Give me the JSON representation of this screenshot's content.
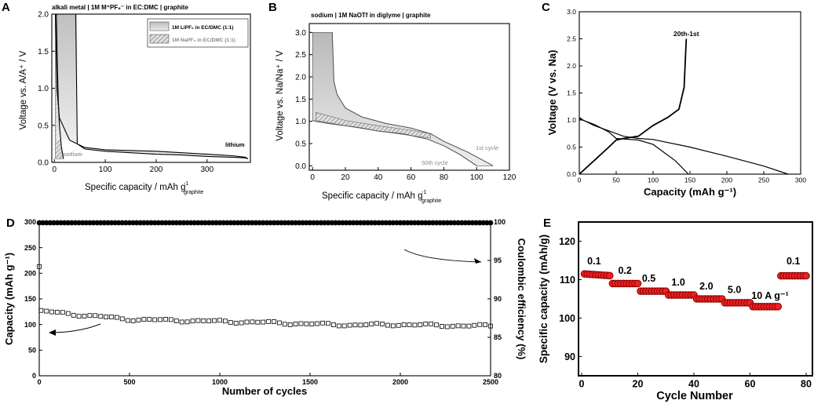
{
  "chart_data": [
    {
      "panel": "A",
      "type": "line",
      "title": "alkali metal | 1M M⁺PF₆⁻ in EC:DMC | graphite",
      "xlabel": "Specific capacity / mAh g⁻¹graphite",
      "ylabel": "Voltage vs. A/A⁺ / V",
      "xlim": [
        -5,
        385
      ],
      "ylim": [
        0,
        2.0
      ],
      "xticks": [
        0,
        100,
        200,
        300
      ],
      "yticks": [
        0.0,
        0.5,
        1.0,
        1.5,
        2.0
      ],
      "legend": [
        "1M LiPF₆ in EC/DMC (1:1)",
        "1M NaPF₆ in EC/DMC (1:1)"
      ],
      "legend_position": "top-right",
      "annotations": [
        "lithium",
        "sodium"
      ],
      "series": [
        {
          "name": "lithium-1st-discharge",
          "x": [
            2,
            5,
            10,
            30,
            60,
            100,
            150,
            200,
            250,
            300,
            350,
            375,
            380
          ],
          "y": [
            2.0,
            1.0,
            0.6,
            0.3,
            0.2,
            0.17,
            0.16,
            0.15,
            0.13,
            0.11,
            0.09,
            0.07,
            0.05
          ]
        },
        {
          "name": "lithium-later-discharge",
          "x": [
            45,
            60,
            100,
            150,
            200,
            250,
            300,
            350,
            375,
            380
          ],
          "y": [
            0.25,
            0.18,
            0.15,
            0.13,
            0.11,
            0.1,
            0.08,
            0.07,
            0.06,
            0.05
          ]
        },
        {
          "name": "sodium-1st",
          "x": [
            4,
            6,
            8,
            10,
            14,
            18
          ],
          "y": [
            2.0,
            1.3,
            0.8,
            0.5,
            0.2,
            0.05
          ]
        }
      ]
    },
    {
      "panel": "B",
      "type": "line",
      "title": "sodium | 1M NaOTf in diglyme | graphite",
      "xlabel": "Specific capacity / mAh g⁻¹graphite",
      "ylabel": "Voltage vs. Na/Na⁺ / V",
      "xlim": [
        -2,
        120
      ],
      "ylim": [
        -0.1,
        3.2
      ],
      "xticks": [
        0,
        20,
        40,
        60,
        80,
        100,
        120
      ],
      "yticks": [
        0.0,
        0.5,
        1.0,
        1.5,
        2.0,
        2.5,
        3.0
      ],
      "annotations": [
        "1st cycle",
        "50th cycle"
      ],
      "series": [
        {
          "name": "1st cycle",
          "x": [
            12,
            13,
            15,
            20,
            30,
            45,
            60,
            72,
            80,
            95,
            110
          ],
          "y": [
            3.0,
            1.9,
            1.6,
            1.3,
            1.1,
            0.95,
            0.85,
            0.72,
            0.55,
            0.3,
            0.0
          ]
        },
        {
          "name": "50th cycle",
          "x": [
            0,
            2,
            10,
            20,
            30,
            40,
            55,
            70,
            80,
            90,
            100
          ],
          "y": [
            1.02,
            1.0,
            0.95,
            0.9,
            0.85,
            0.78,
            0.72,
            0.6,
            0.45,
            0.25,
            0.0
          ]
        }
      ]
    },
    {
      "panel": "C",
      "type": "line",
      "xlabel": "Capacity (mAh g⁻¹)",
      "ylabel": "Voltage (V vs. Na)",
      "xlim": [
        0,
        300
      ],
      "ylim": [
        0,
        3.0
      ],
      "xticks": [
        0,
        50,
        100,
        150,
        200,
        250,
        300
      ],
      "yticks": [
        0.0,
        0.5,
        1.0,
        1.5,
        2.0,
        2.5,
        3.0
      ],
      "annotations": [
        "20th-1st"
      ],
      "series": [
        {
          "name": "1st discharge",
          "x": [
            0,
            5,
            20,
            40,
            60,
            80,
            100,
            150,
            200,
            250,
            283
          ],
          "y": [
            1.05,
            1.0,
            0.9,
            0.8,
            0.7,
            0.66,
            0.64,
            0.5,
            0.33,
            0.15,
            0.0
          ]
        },
        {
          "name": "later discharge",
          "x": [
            0,
            20,
            40,
            50,
            60,
            80,
            100,
            130,
            148
          ],
          "y": [
            1.02,
            0.92,
            0.78,
            0.66,
            0.65,
            0.63,
            0.55,
            0.25,
            0.0
          ]
        },
        {
          "name": "charge",
          "x": [
            0,
            20,
            40,
            50,
            60,
            80,
            100,
            120,
            135,
            142,
            145
          ],
          "y": [
            0.0,
            0.25,
            0.5,
            0.63,
            0.66,
            0.7,
            0.9,
            1.05,
            1.2,
            1.6,
            2.5
          ]
        }
      ]
    },
    {
      "panel": "D",
      "type": "scatter",
      "xlabel": "Number of cycles",
      "ylabel": "Capacity (mAh g⁻¹)",
      "y2label": "Coulombic efficiency (%)",
      "xlim": [
        0,
        2500
      ],
      "ylim": [
        0,
        300
      ],
      "y2lim": [
        80,
        100
      ],
      "xticks": [
        0,
        500,
        1000,
        1500,
        2000,
        2500
      ],
      "yticks": [
        0,
        50,
        100,
        150,
        200,
        250,
        300
      ],
      "y2ticks": [
        80,
        85,
        90,
        95,
        100
      ],
      "series": [
        {
          "name": "Capacity",
          "axis": "left",
          "x": [
            0,
            10,
            250,
            500,
            750,
            1000,
            1250,
            1500,
            1750,
            2000,
            2250,
            2500
          ],
          "y": [
            213,
            126,
            118,
            110,
            108,
            106,
            104,
            101,
            99,
            100,
            98,
            97
          ]
        },
        {
          "name": "Coulombic efficiency",
          "axis": "right",
          "x": [
            0,
            2500
          ],
          "y": [
            99.9,
            99.9
          ]
        }
      ]
    },
    {
      "panel": "E",
      "type": "scatter",
      "xlabel": "Cycle Number",
      "ylabel": "Specific capacity (mAh/g)",
      "xlim": [
        0,
        80
      ],
      "ylim": [
        85,
        125
      ],
      "xticks": [
        0,
        20,
        40,
        60,
        80
      ],
      "yticks": [
        90,
        100,
        110,
        120
      ],
      "rate_labels": [
        "0.1",
        "0.2",
        "0.5",
        "1.0",
        "2.0",
        "5.0",
        "10 A g⁻¹",
        "0.1"
      ],
      "rate_segments": [
        {
          "rate": "0.1",
          "cycles": [
            1,
            10
          ],
          "capacity": 111.5
        },
        {
          "rate": "0.2",
          "cycles": [
            11,
            20
          ],
          "capacity": 109
        },
        {
          "rate": "0.5",
          "cycles": [
            21,
            30
          ],
          "capacity": 107
        },
        {
          "rate": "1.0",
          "cycles": [
            31,
            40
          ],
          "capacity": 106
        },
        {
          "rate": "2.0",
          "cycles": [
            41,
            50
          ],
          "capacity": 105
        },
        {
          "rate": "5.0",
          "cycles": [
            51,
            60
          ],
          "capacity": 104
        },
        {
          "rate": "10",
          "cycles": [
            61,
            70
          ],
          "capacity": 103
        },
        {
          "rate": "0.1",
          "cycles": [
            71,
            80
          ],
          "capacity": 111
        }
      ]
    }
  ],
  "panels": {
    "A": {
      "letter": "A",
      "title": "alkali metal | 1M M⁺PF₆⁻ in EC:DMC | graphite",
      "xlabel": "Specific capacity / mAh g",
      "xsup": "-1",
      "xsub": "graphite",
      "ylabel": "Voltage vs. A/A⁺ / V",
      "legend1": "1M LiPF₆ in EC/DMC (1:1)",
      "legend2": "1M NaPF₆ in EC/DMC (1:1)",
      "ann_lithium": "lithium",
      "ann_sodium": "sodium"
    },
    "B": {
      "letter": "B",
      "title": "sodium | 1M NaOTf in diglyme | graphite",
      "xlabel": "Specific capacity / mAh g",
      "xsup": "-1",
      "xsub": "graphite",
      "ylabel": "Voltage vs. Na/Na⁺ / V",
      "ann_1st": "1st cycle",
      "ann_50th": "50th cycle"
    },
    "C": {
      "letter": "C",
      "xlabel": "Capacity (mAh g⁻¹)",
      "ylabel": "Voltage (V vs. Na)",
      "ann": "20th-1st"
    },
    "D": {
      "letter": "D",
      "xlabel": "Number of cycles",
      "ylabel": "Capacity (mAh g⁻¹)",
      "y2label": "Coulombic efficiency (%)"
    },
    "E": {
      "letter": "E",
      "xlabel": "Cycle Number",
      "ylabel": "Specific capacity (mAh/g)"
    }
  },
  "colors": {
    "line": "#000000",
    "gray_fill": "#d8d8d8",
    "light_fill": "#e6e6e6",
    "hatch": "#777777",
    "marker_red": "#ee2222",
    "marker_edge": "#8a0000",
    "gray_text": "#888888"
  }
}
